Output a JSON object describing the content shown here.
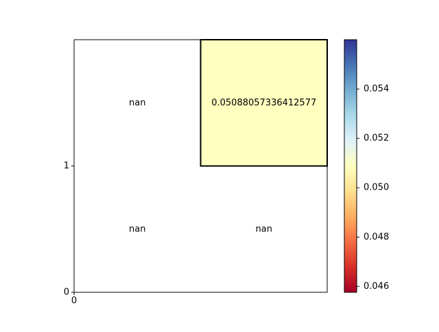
{
  "chart_data": {
    "type": "heatmap",
    "title": "",
    "xlabel": "",
    "ylabel": "",
    "xlim": [
      0,
      2
    ],
    "ylim": [
      0,
      2
    ],
    "x_tick_labels": [
      {
        "value": 0,
        "label": "0"
      }
    ],
    "y_tick_labels": [
      {
        "value": 0,
        "label": "0"
      },
      {
        "value": 1,
        "label": "1"
      }
    ],
    "cells": [
      {
        "row": 1,
        "col": 0,
        "value": null,
        "label": "nan",
        "highlighted": false
      },
      {
        "row": 1,
        "col": 1,
        "value": 0.05088057336412577,
        "label": "0.05088057336412577",
        "highlighted": true,
        "color": "#ffffbf"
      },
      {
        "row": 0,
        "col": 0,
        "value": null,
        "label": "nan",
        "highlighted": false
      },
      {
        "row": 0,
        "col": 1,
        "value": null,
        "label": "nan",
        "highlighted": false
      }
    ],
    "colorbar": {
      "colormap": "RdYlBu",
      "range": [
        0.04576,
        0.056
      ],
      "ticks": [
        {
          "value": 0.046,
          "label": "0.046"
        },
        {
          "value": 0.048,
          "label": "0.048"
        },
        {
          "value": 0.05,
          "label": "0.050"
        },
        {
          "value": 0.052,
          "label": "0.052"
        },
        {
          "value": 0.054,
          "label": "0.054"
        }
      ]
    }
  }
}
